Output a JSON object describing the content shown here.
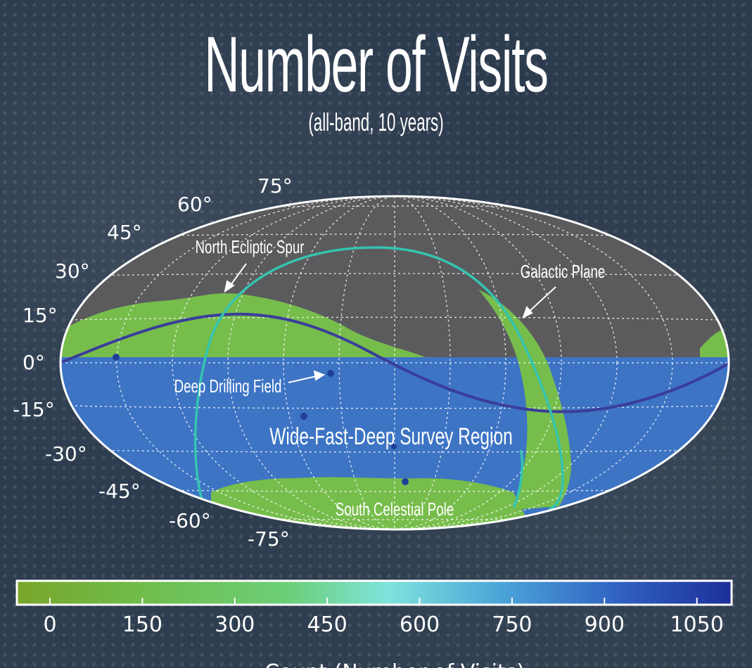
{
  "title": "Number of Visits",
  "subtitle": "(all-band, 10 years)",
  "latitude_labels": [
    "75°",
    "60°",
    "45°",
    "30°",
    "15°",
    "0°",
    "-15°",
    "-30°",
    "-45°",
    "-60°",
    "-75°"
  ],
  "annotations": {
    "north_ecliptic_spur": "North Ecliptic Spur",
    "galactic_plane": "Galactic Plane",
    "deep_drilling_field": "Deep Drilling Field",
    "wfd_region": "Wide-Fast-Deep Survey Region",
    "south_celestial_pole": "South Celestial Pole"
  },
  "colorbar": {
    "ticks": [
      "0",
      "150",
      "300",
      "450",
      "600",
      "750",
      "900",
      "1050"
    ],
    "label": "Count   (Number of Visits)",
    "colors": [
      "#78a62a",
      "#6fbd4c",
      "#6ccf78",
      "#7ee3dc",
      "#4aa3d8",
      "#2f5fc0",
      "#1c2f9a"
    ]
  },
  "colors": {
    "wfd_blue": "#3d74c4",
    "secondary_green": "#77bd4c",
    "unobserved_gray": "#5b5b5e",
    "ecliptic_line": "#3a3d9a",
    "galactic_line": "#35c4b0"
  },
  "icons": {
    "arrow": "annotation-arrow-icon"
  }
}
